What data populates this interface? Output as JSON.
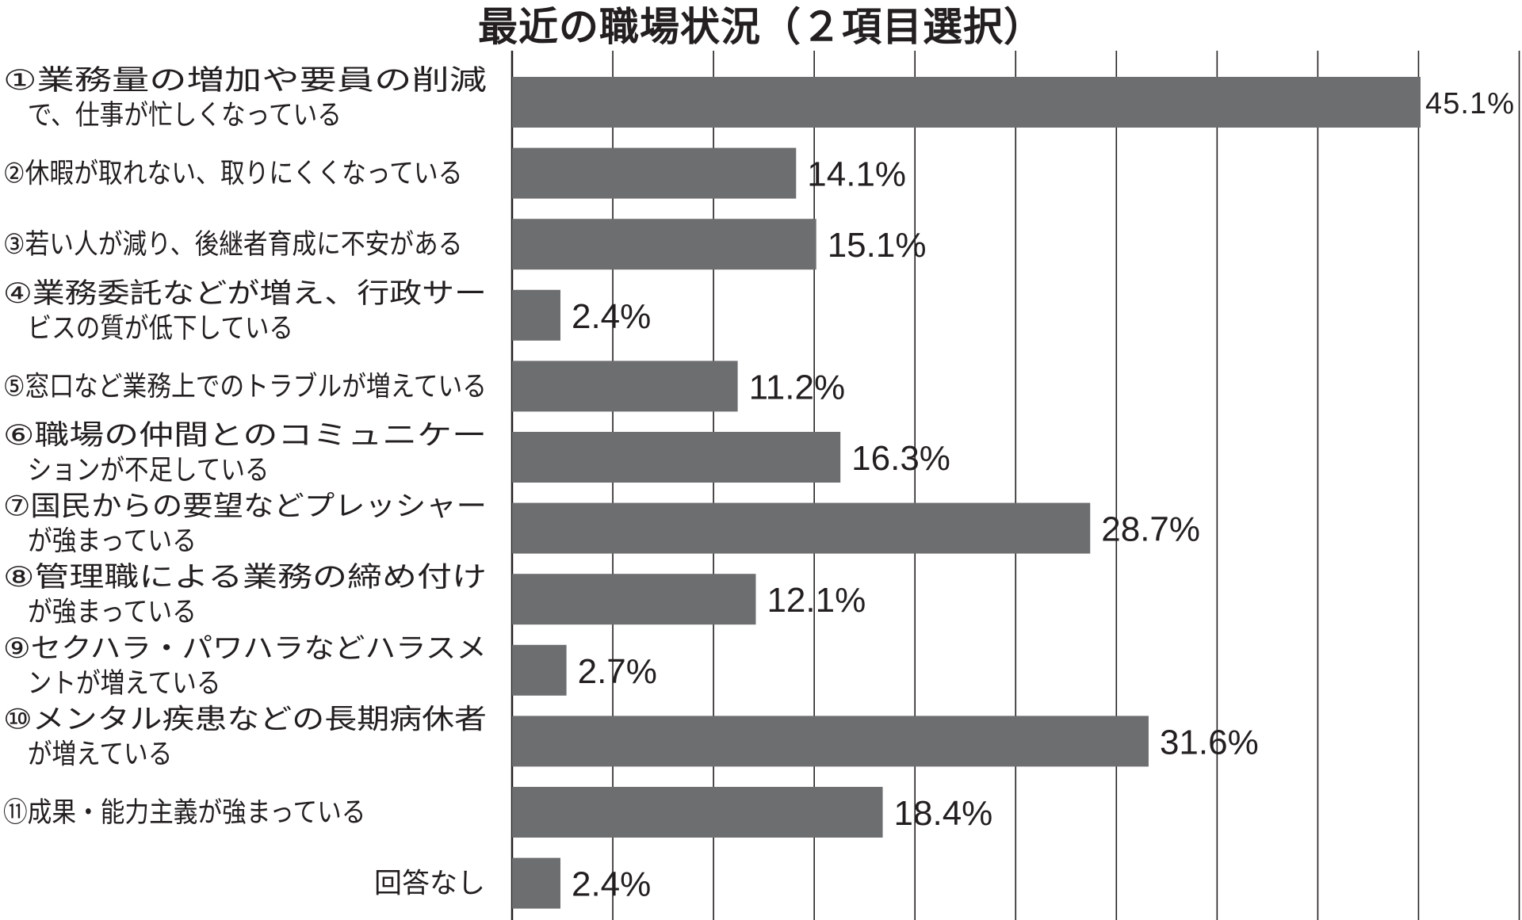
{
  "chart_data": {
    "type": "bar",
    "orientation": "horizontal",
    "title": "最近の職場状況（２項目選択）",
    "categories": [
      [
        "①業務量の増加や要員の削減",
        "　で、仕事が忙しくなっている"
      ],
      [
        "②休暇が取れない、取りにくくなっている"
      ],
      [
        "③若い人が減り、後継者育成に不安がある"
      ],
      [
        "④業務委託などが増え、行政サー",
        "　ビスの質が低下している"
      ],
      [
        "⑤窓口など業務上でのトラブルが増えている"
      ],
      [
        "⑥職場の仲間とのコミュニケー",
        "　ションが不足している"
      ],
      [
        "⑦国民からの要望などプレッシャー",
        "　が強まっている"
      ],
      [
        "⑧管理職による業務の締め付け",
        "　が強まっている"
      ],
      [
        "⑨セクハラ・パワハラなどハラスメ",
        "　ントが増えている"
      ],
      [
        "⑩メンタル疾患などの長期病休者",
        "　が増えている"
      ],
      [
        "⑪成果・能力主義が強まっている"
      ],
      [
        "回答なし"
      ]
    ],
    "values": [
      45.1,
      14.1,
      15.1,
      2.4,
      11.2,
      16.3,
      28.7,
      12.1,
      2.7,
      31.6,
      18.4,
      2.4
    ],
    "value_labels": [
      "45.1%",
      "14.1%",
      "15.1%",
      "2.4%",
      "11.2%",
      "16.3%",
      "28.7%",
      "12.1%",
      "2.7%",
      "31.6%",
      "18.4%",
      "2.4%"
    ],
    "xlim": [
      0,
      50
    ],
    "grid": true,
    "gridline_step": 5,
    "bar_color": "#6d6e70",
    "grid_color": "#231f20"
  }
}
